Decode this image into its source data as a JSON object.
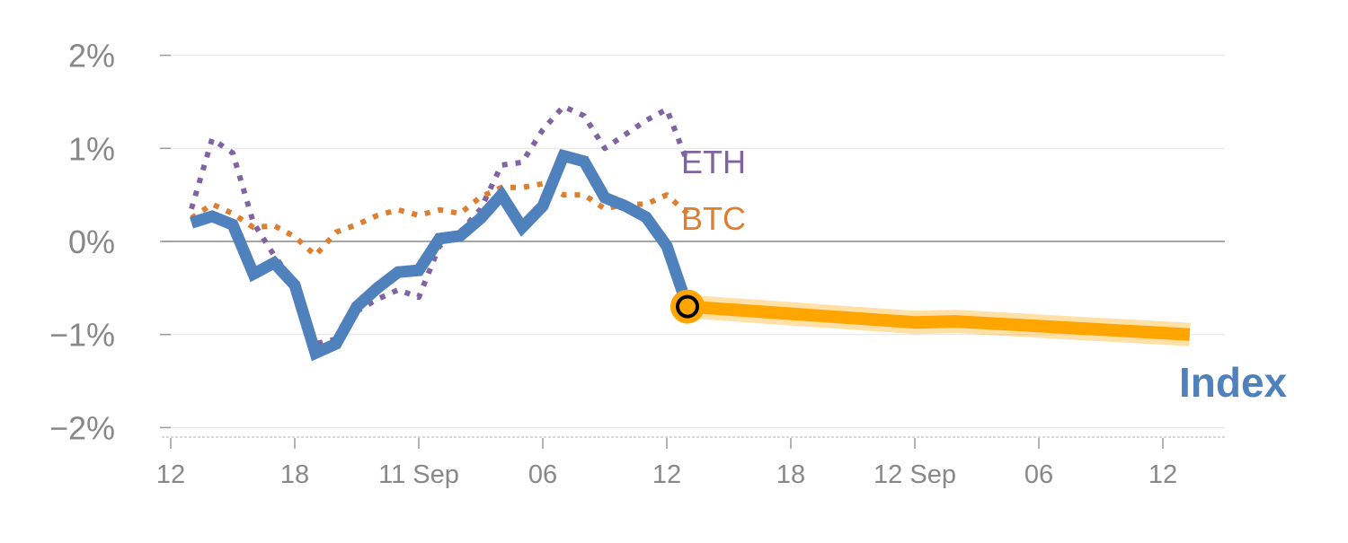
{
  "chart_data": {
    "type": "line",
    "title": "",
    "xlabel": "",
    "ylabel": "",
    "ylim": [
      -2,
      2
    ],
    "xlim": [
      0,
      50
    ],
    "y_ticks": [
      {
        "value": 2,
        "label": "2%"
      },
      {
        "value": 1,
        "label": "1%"
      },
      {
        "value": 0,
        "label": "0%"
      },
      {
        "value": -1,
        "label": "−1%"
      },
      {
        "value": -2,
        "label": "−2%"
      }
    ],
    "x_ticks": [
      {
        "value": 0,
        "label": "12"
      },
      {
        "value": 6,
        "label": "18"
      },
      {
        "value": 12,
        "label": "11 Sep"
      },
      {
        "value": 18,
        "label": "06"
      },
      {
        "value": 24,
        "label": "12"
      },
      {
        "value": 30,
        "label": "18"
      },
      {
        "value": 36,
        "label": "12 Sep"
      },
      {
        "value": 42,
        "label": "06"
      },
      {
        "value": 48,
        "label": "12"
      }
    ],
    "grid": true,
    "series": [
      {
        "name": "ETH",
        "label": "ETH",
        "color": "#8064a2",
        "style": "dotted",
        "x": [
          1,
          2,
          3,
          4,
          5,
          6,
          7,
          8,
          9,
          10,
          11,
          12,
          13,
          14,
          15,
          16,
          17,
          18,
          19,
          20,
          21,
          22,
          23,
          24,
          25
        ],
        "values": [
          0.35,
          1.1,
          0.95,
          0.2,
          -0.15,
          -0.45,
          -1.1,
          -1.05,
          -0.75,
          -0.62,
          -0.52,
          -0.6,
          -0.05,
          0.1,
          0.35,
          0.82,
          0.85,
          1.2,
          1.45,
          1.35,
          1.0,
          1.15,
          1.3,
          1.42,
          0.85
        ]
      },
      {
        "name": "BTC",
        "label": "BTC",
        "color": "#dd7f31",
        "style": "dotted",
        "x": [
          1,
          2,
          3,
          4,
          5,
          6,
          7,
          8,
          9,
          10,
          11,
          12,
          13,
          14,
          15,
          16,
          17,
          18,
          19,
          20,
          21,
          22,
          23,
          24,
          25
        ],
        "values": [
          0.25,
          0.4,
          0.3,
          0.15,
          0.17,
          0.05,
          -0.15,
          0.1,
          0.18,
          0.28,
          0.34,
          0.28,
          0.34,
          0.3,
          0.48,
          0.58,
          0.58,
          0.62,
          0.5,
          0.5,
          0.35,
          0.4,
          0.4,
          0.5,
          0.3
        ]
      },
      {
        "name": "Index",
        "label": "Index",
        "color": "#4f81bd",
        "style": "solid",
        "x": [
          1,
          2,
          3,
          4,
          5,
          6,
          7,
          8,
          9,
          10,
          11,
          12,
          13,
          14,
          15,
          16,
          17,
          18,
          19,
          20,
          21,
          22,
          23,
          24,
          25
        ],
        "values": [
          0.2,
          0.27,
          0.18,
          -0.35,
          -0.23,
          -0.47,
          -1.2,
          -1.1,
          -0.7,
          -0.5,
          -0.33,
          -0.31,
          0.03,
          0.06,
          0.25,
          0.5,
          0.15,
          0.38,
          0.92,
          0.86,
          0.47,
          0.38,
          0.26,
          -0.05,
          -0.7
        ]
      },
      {
        "name": "Index forecast",
        "color": "#ffa500",
        "style": "band",
        "x": [
          25,
          36,
          38,
          49.3
        ],
        "values": [
          -0.7,
          -0.87,
          -0.86,
          -1.0
        ]
      }
    ],
    "marker": {
      "x": 25,
      "value": -0.7
    }
  }
}
